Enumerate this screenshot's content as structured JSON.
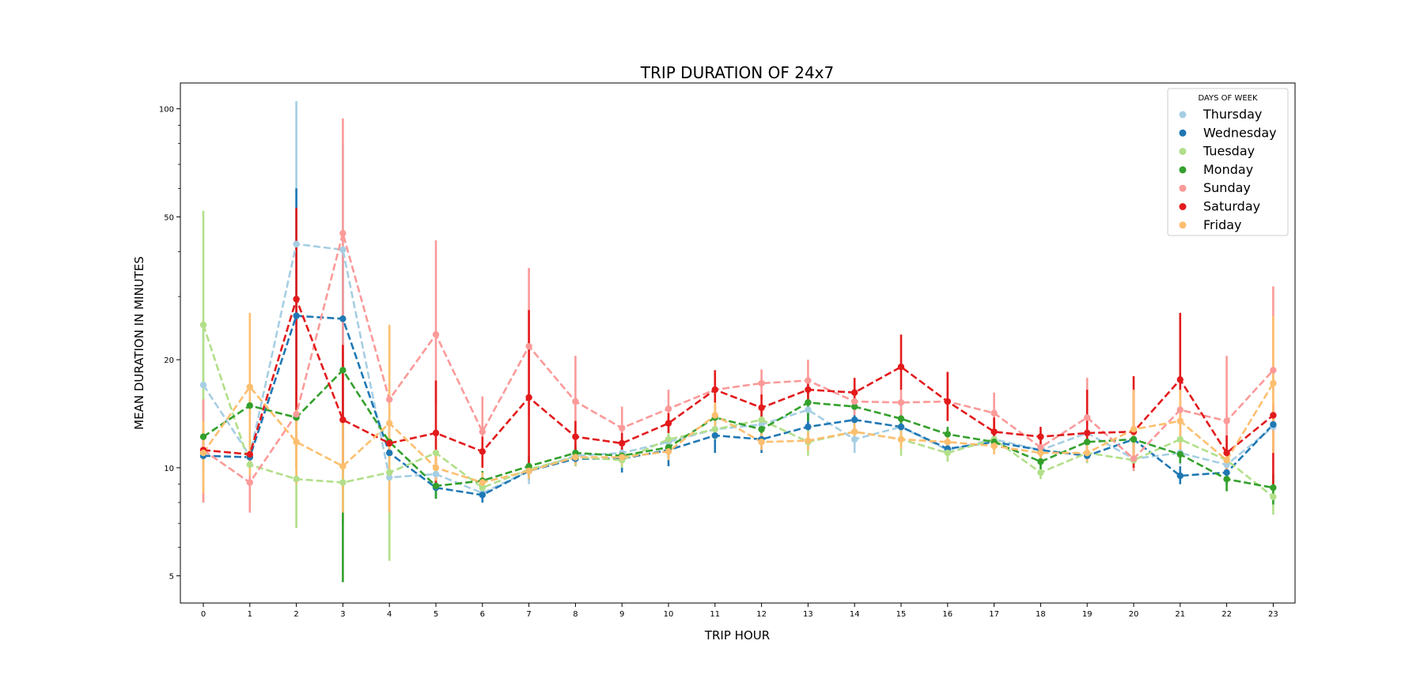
{
  "chart_data": {
    "type": "line",
    "title": "TRIP DURATION OF 24x7",
    "xlabel": "TRIP HOUR",
    "ylabel": "MEAN DURATION IN MINUTES",
    "yscale": "log",
    "ylim": [
      4.2,
      118
    ],
    "y_ticks": [
      5,
      10,
      20,
      50,
      100
    ],
    "x": [
      0,
      1,
      2,
      3,
      4,
      5,
      6,
      7,
      8,
      9,
      10,
      11,
      12,
      13,
      14,
      15,
      16,
      17,
      18,
      19,
      20,
      21,
      22,
      23
    ],
    "legend": {
      "title": "DAYS OF WEEK",
      "position": "top-right"
    },
    "series": [
      {
        "name": "Thursday",
        "color": "#a6cee3",
        "values": [
          17.0,
          10.8,
          42.0,
          40.5,
          9.4,
          9.6,
          8.5,
          9.8,
          10.8,
          11.0,
          11.8,
          12.8,
          13.2,
          14.5,
          12.0,
          13.0,
          11.2,
          12.0,
          11.2,
          12.5,
          10.6,
          11.0,
          10.2,
          13.0
        ],
        "err_low": [
          11.0,
          10.0,
          14.0,
          12.0,
          7.0,
          8.5,
          8.0,
          9.0,
          10.2,
          10.3,
          11.0,
          12.0,
          12.0,
          12.5,
          11.0,
          12.0,
          10.6,
          11.2,
          10.5,
          11.5,
          9.8,
          10.2,
          9.6,
          12.0
        ],
        "err_high": [
          24.0,
          11.5,
          105.0,
          80.0,
          11.5,
          10.5,
          9.0,
          10.5,
          11.5,
          11.8,
          12.8,
          13.8,
          14.5,
          17.0,
          13.2,
          14.3,
          12.0,
          12.8,
          12.0,
          13.5,
          11.5,
          12.0,
          11.0,
          14.5
        ]
      },
      {
        "name": "Wednesday",
        "color": "#1f78b4",
        "values": [
          10.8,
          10.7,
          26.5,
          26.0,
          11.0,
          8.8,
          8.4,
          9.8,
          10.6,
          10.6,
          11.2,
          12.3,
          12.0,
          13.0,
          13.6,
          13.0,
          11.3,
          11.8,
          11.2,
          10.8,
          12.0,
          9.5,
          9.7,
          13.2
        ],
        "err_low": [
          10.0,
          10.0,
          14.0,
          12.0,
          10.0,
          8.2,
          8.0,
          9.3,
          10.1,
          9.7,
          10.1,
          11.0,
          11.0,
          11.5,
          12.8,
          12.2,
          10.8,
          11.3,
          10.6,
          10.3,
          11.2,
          9.0,
          9.0,
          12.5
        ],
        "err_high": [
          11.8,
          11.5,
          60.0,
          40.0,
          12.0,
          9.3,
          8.8,
          10.3,
          11.3,
          11.4,
          12.3,
          13.5,
          13.0,
          14.5,
          14.5,
          14.0,
          11.8,
          12.5,
          11.8,
          11.4,
          13.0,
          10.1,
          10.5,
          14.2
        ]
      },
      {
        "name": "Tuesday",
        "color": "#b2df8a",
        "values": [
          25.0,
          10.2,
          9.3,
          9.1,
          9.7,
          11.0,
          8.8,
          9.9,
          10.7,
          10.5,
          12.0,
          12.8,
          13.6,
          11.8,
          12.6,
          12.0,
          11.0,
          12.0,
          9.7,
          11.0,
          10.5,
          12.0,
          10.5,
          8.3
        ],
        "err_low": [
          8.0,
          8.0,
          6.8,
          7.0,
          5.5,
          9.5,
          8.3,
          9.4,
          10.1,
          10.0,
          11.0,
          12.0,
          12.8,
          10.8,
          12.0,
          10.8,
          10.4,
          11.2,
          9.3,
          10.3,
          9.8,
          11.2,
          9.6,
          7.4
        ],
        "err_high": [
          52.0,
          12.0,
          11.5,
          12.0,
          14.0,
          12.0,
          9.3,
          10.5,
          11.3,
          11.1,
          13.0,
          13.8,
          14.5,
          13.0,
          13.4,
          13.2,
          11.6,
          12.7,
          10.2,
          11.7,
          11.3,
          13.0,
          11.5,
          9.3
        ]
      },
      {
        "name": "Monday",
        "color": "#33a02c",
        "values": [
          12.2,
          14.9,
          13.8,
          18.7,
          11.8,
          8.9,
          9.2,
          10.1,
          11.0,
          10.8,
          11.4,
          13.8,
          12.8,
          15.2,
          14.8,
          13.7,
          12.4,
          11.8,
          10.4,
          11.8,
          12.0,
          10.9,
          9.3,
          8.8
        ],
        "err_low": [
          11.5,
          14.0,
          10.0,
          4.8,
          10.8,
          8.2,
          8.6,
          9.5,
          10.5,
          10.3,
          10.8,
          13.0,
          12.2,
          13.5,
          14.0,
          13.0,
          11.8,
          11.2,
          9.8,
          11.2,
          11.4,
          10.3,
          8.6,
          7.9
        ],
        "err_high": [
          13.0,
          15.8,
          17.0,
          21.0,
          13.0,
          9.6,
          9.8,
          10.8,
          11.6,
          11.4,
          12.0,
          14.7,
          13.5,
          17.0,
          15.7,
          14.5,
          13.0,
          12.5,
          11.0,
          12.4,
          12.6,
          11.5,
          10.0,
          9.6
        ]
      },
      {
        "name": "Sunday",
        "color": "#fb9a99",
        "values": [
          11.2,
          9.1,
          14.1,
          45.0,
          15.5,
          23.5,
          12.6,
          21.8,
          15.3,
          12.9,
          14.6,
          16.5,
          17.2,
          17.5,
          15.3,
          15.2,
          15.3,
          14.2,
          11.4,
          13.8,
          10.6,
          14.5,
          13.5,
          18.7
        ],
        "err_low": [
          8.0,
          7.5,
          10.0,
          14.0,
          12.0,
          15.0,
          10.0,
          14.0,
          12.0,
          11.5,
          13.0,
          15.0,
          15.5,
          15.5,
          14.0,
          14.0,
          13.5,
          12.5,
          10.5,
          11.5,
          9.8,
          11.5,
          9.8,
          14.0
        ],
        "err_high": [
          15.5,
          11.5,
          18.0,
          94.0,
          17.0,
          43.0,
          15.8,
          36.0,
          20.5,
          14.8,
          16.5,
          18.0,
          18.8,
          20.0,
          16.5,
          16.5,
          17.0,
          16.2,
          12.4,
          17.8,
          11.5,
          17.5,
          20.5,
          32.0
        ]
      },
      {
        "name": "Saturday",
        "color": "#e31a1c",
        "values": [
          11.2,
          10.9,
          29.5,
          13.6,
          11.7,
          12.5,
          11.1,
          15.7,
          12.2,
          11.7,
          13.3,
          16.5,
          14.7,
          16.5,
          16.2,
          19.1,
          15.3,
          12.6,
          12.2,
          12.5,
          12.6,
          17.6,
          11.0,
          14.0
        ],
        "err_low": [
          10.5,
          10.2,
          14.0,
          10.0,
          10.8,
          9.0,
          10.0,
          10.0,
          11.0,
          11.0,
          12.5,
          14.5,
          13.5,
          15.5,
          15.0,
          16.5,
          13.5,
          11.5,
          11.5,
          10.5,
          10.0,
          11.0,
          9.8,
          9.0
        ],
        "err_high": [
          12.0,
          11.6,
          53.0,
          22.0,
          12.6,
          17.5,
          12.2,
          27.5,
          13.5,
          12.5,
          14.2,
          18.7,
          16.0,
          17.5,
          17.8,
          23.5,
          18.5,
          13.8,
          13.0,
          16.5,
          18.0,
          27.0,
          12.3,
          15.0
        ]
      },
      {
        "name": "Friday",
        "color": "#fdbf6f",
        "values": [
          11.0,
          16.8,
          11.8,
          10.1,
          13.3,
          10.0,
          9.1,
          9.8,
          10.7,
          10.7,
          11.1,
          14.0,
          11.8,
          11.9,
          12.6,
          12.0,
          11.8,
          11.5,
          11.0,
          11.0,
          12.8,
          13.5,
          10.5,
          17.2
        ],
        "err_low": [
          8.5,
          9.5,
          9.0,
          7.5,
          7.5,
          9.2,
          8.5,
          9.3,
          10.2,
          10.2,
          10.5,
          12.8,
          11.2,
          11.2,
          11.8,
          11.3,
          11.2,
          10.9,
          10.4,
          10.4,
          10.5,
          11.0,
          9.8,
          11.0
        ],
        "err_high": [
          13.5,
          27.0,
          14.5,
          13.5,
          25.0,
          10.8,
          9.7,
          10.3,
          11.2,
          11.2,
          11.7,
          15.2,
          12.5,
          12.6,
          13.4,
          12.7,
          12.4,
          12.1,
          11.6,
          11.6,
          16.5,
          16.5,
          11.2,
          26.5
        ]
      }
    ]
  }
}
